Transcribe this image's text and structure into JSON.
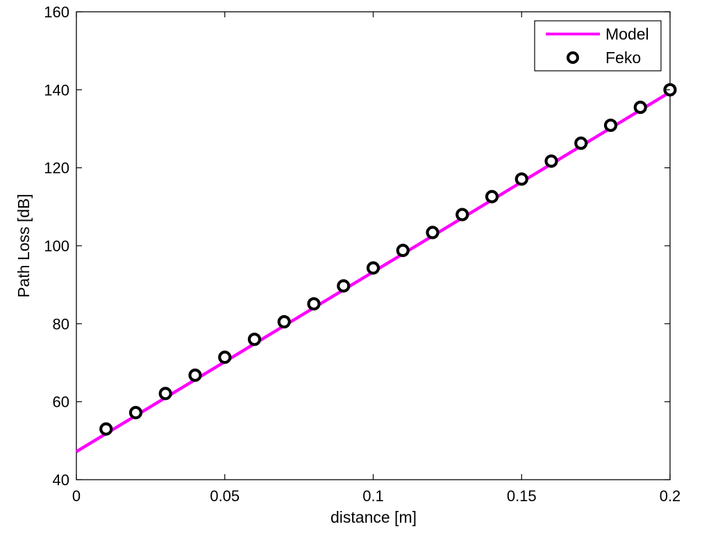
{
  "chart_data": {
    "type": "line",
    "title": "",
    "xlabel": "distance [m]",
    "ylabel": "Path Loss [dB]",
    "xlim": [
      0,
      0.2
    ],
    "ylim": [
      40,
      160
    ],
    "x_ticks": [
      0,
      0.05,
      0.1,
      0.15,
      0.2
    ],
    "x_tick_labels": [
      "0",
      "0.05",
      "0.1",
      "0.15",
      "0.2"
    ],
    "y_ticks": [
      40,
      60,
      80,
      100,
      120,
      140,
      160
    ],
    "y_tick_labels": [
      "40",
      "60",
      "80",
      "100",
      "120",
      "140",
      "160"
    ],
    "grid": false,
    "legend_position": "top-right",
    "series": [
      {
        "name": "Model",
        "kind": "line",
        "color": "#ff00ff",
        "x": [
          0,
          0.2
        ],
        "y": [
          47.2,
          139.4
        ]
      },
      {
        "name": "Feko",
        "kind": "scatter",
        "marker": "circle-open",
        "color": "#000000",
        "x": [
          0.01,
          0.02,
          0.03,
          0.04,
          0.05,
          0.06,
          0.07,
          0.08,
          0.09,
          0.1,
          0.11,
          0.12,
          0.13,
          0.14,
          0.15,
          0.16,
          0.17,
          0.18,
          0.19,
          0.2
        ],
        "y": [
          53.0,
          57.2,
          62.1,
          66.8,
          71.4,
          76.0,
          80.5,
          85.1,
          89.7,
          94.3,
          98.8,
          103.4,
          108.0,
          112.6,
          117.1,
          121.7,
          126.3,
          130.9,
          135.5,
          140.0
        ]
      }
    ]
  }
}
